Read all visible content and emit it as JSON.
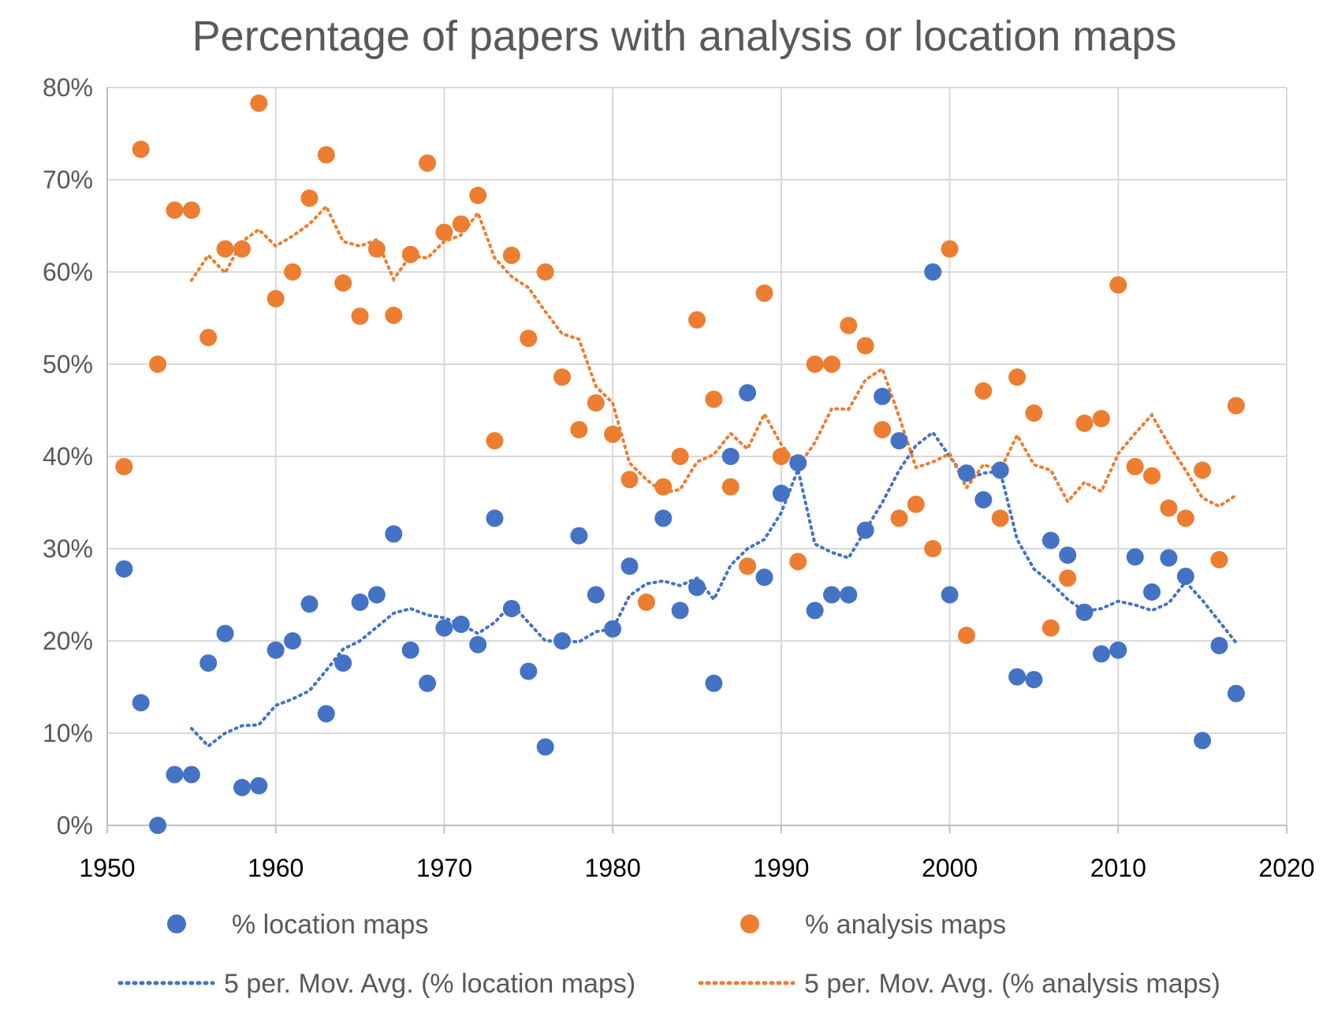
{
  "chart_data": {
    "type": "scatter",
    "title": "Percentage of papers with analysis or location maps",
    "xlabel": "",
    "ylabel": "",
    "xlim": [
      1950,
      2020
    ],
    "ylim": [
      0,
      80
    ],
    "x_ticks": [
      1950,
      1960,
      1970,
      1980,
      1990,
      2000,
      2010,
      2020
    ],
    "y_ticks": [
      0,
      10,
      20,
      30,
      40,
      50,
      60,
      70,
      80
    ],
    "x_tick_labels": [
      "1950",
      "1960",
      "1970",
      "1980",
      "1990",
      "2000",
      "2010",
      "2020"
    ],
    "y_tick_labels": [
      "0%",
      "10%",
      "20%",
      "30%",
      "40%",
      "50%",
      "60%",
      "70%",
      "80%"
    ],
    "grid": true,
    "legend_position": "bottom",
    "series": [
      {
        "name": "% location maps",
        "kind": "points",
        "color": "#4472C4",
        "x": [
          1951,
          1952,
          1953,
          1954,
          1955,
          1956,
          1957,
          1958,
          1959,
          1960,
          1961,
          1962,
          1963,
          1964,
          1965,
          1966,
          1967,
          1968,
          1969,
          1970,
          1971,
          1972,
          1973,
          1974,
          1975,
          1976,
          1977,
          1978,
          1979,
          1980,
          1981,
          1982,
          1983,
          1984,
          1985,
          1986,
          1987,
          1988,
          1989,
          1990,
          1991,
          1992,
          1993,
          1994,
          1995,
          1996,
          1997,
          1998,
          1999,
          2000,
          2001,
          2002,
          2003,
          2004,
          2005,
          2006,
          2007,
          2008,
          2009,
          2010,
          2011,
          2012,
          2013,
          2014,
          2015,
          2016,
          2017
        ],
        "y": [
          27.8,
          13.3,
          0,
          5.5,
          5.5,
          17.6,
          20.8,
          4.1,
          4.3,
          19.0,
          20.0,
          24.0,
          12.1,
          17.6,
          24.2,
          25.0,
          31.6,
          19.0,
          15.4,
          21.4,
          21.8,
          19.6,
          33.3,
          23.5,
          16.7,
          8.5,
          20.0,
          31.4,
          25.0,
          21.3,
          28.1,
          null,
          33.3,
          23.3,
          25.8,
          15.4,
          40.0,
          46.9,
          26.9,
          36.0,
          39.3,
          23.3,
          25.0,
          25.0,
          32.0,
          46.5,
          41.7,
          null,
          60.0,
          25.0,
          38.2,
          35.3,
          38.5,
          16.1,
          15.8,
          30.9,
          29.3,
          23.1,
          18.6,
          19.0,
          29.1,
          25.3,
          29.0,
          27.0,
          9.2,
          19.5,
          14.3
        ]
      },
      {
        "name": "% analysis maps",
        "kind": "points",
        "color": "#ED7D31",
        "x": [
          1951,
          1952,
          1953,
          1954,
          1955,
          1956,
          1957,
          1958,
          1959,
          1960,
          1961,
          1962,
          1963,
          1964,
          1965,
          1966,
          1967,
          1968,
          1969,
          1970,
          1971,
          1972,
          1973,
          1974,
          1975,
          1976,
          1977,
          1978,
          1979,
          1980,
          1981,
          1982,
          1983,
          1984,
          1985,
          1986,
          1987,
          1988,
          1989,
          1990,
          1991,
          1992,
          1993,
          1994,
          1995,
          1996,
          1997,
          1998,
          1999,
          2000,
          2001,
          2002,
          2003,
          2004,
          2005,
          2006,
          2007,
          2008,
          2009,
          2010,
          2011,
          2012,
          2013,
          2014,
          2015,
          2016,
          2017
        ],
        "y": [
          38.9,
          73.3,
          50.0,
          66.7,
          66.7,
          52.9,
          62.5,
          62.5,
          78.3,
          57.1,
          60.0,
          68.0,
          72.7,
          58.8,
          55.2,
          62.5,
          55.3,
          61.9,
          71.8,
          64.3,
          65.2,
          68.3,
          41.7,
          61.8,
          52.8,
          60.0,
          48.6,
          42.9,
          45.8,
          42.4,
          37.5,
          24.2,
          36.7,
          40.0,
          54.8,
          46.2,
          36.7,
          28.1,
          57.7,
          40.0,
          28.6,
          50.0,
          50.0,
          54.2,
          52.0,
          42.9,
          33.3,
          34.8,
          30.0,
          62.5,
          20.6,
          47.1,
          33.3,
          48.6,
          44.7,
          21.4,
          26.8,
          43.6,
          44.1,
          58.6,
          38.9,
          37.9,
          34.4,
          33.3,
          38.5,
          28.8,
          45.5
        ]
      },
      {
        "name": "5 per. Mov. Avg. (% location maps)",
        "kind": "line",
        "color": "#4472C4",
        "x": [
          1955,
          1956,
          1957,
          1958,
          1959,
          1960,
          1961,
          1962,
          1963,
          1964,
          1965,
          1966,
          1967,
          1968,
          1969,
          1970,
          1971,
          1972,
          1973,
          1974,
          1975,
          1976,
          1977,
          1978,
          1979,
          1980,
          1981,
          1982,
          1983,
          1984,
          1985,
          1986,
          1987,
          1988,
          1989,
          1990,
          1991,
          1992,
          1993,
          1994,
          1995,
          1996,
          1997,
          1998,
          1999,
          2000,
          2001,
          2002,
          2003,
          2004,
          2005,
          2006,
          2007,
          2008,
          2009,
          2010,
          2011,
          2012,
          2013,
          2014,
          2015,
          2016,
          2017
        ],
        "y": [
          10.5,
          8.6,
          10.0,
          10.8,
          10.9,
          13.0,
          13.7,
          14.6,
          16.8,
          19.1,
          20.0,
          21.5,
          23.0,
          23.5,
          22.8,
          22.5,
          21.8,
          20.8,
          22.0,
          24.0,
          22.0,
          20.0,
          20.0,
          19.9,
          21.0,
          21.3,
          24.9,
          26.2,
          26.5,
          26.0,
          26.8,
          24.5,
          28.2,
          30.0,
          31.0,
          33.9,
          38.6,
          30.5,
          29.6,
          29.0,
          32.0,
          35.0,
          38.5,
          41.2,
          42.6,
          40.0,
          37.5,
          38.2,
          38.4,
          31.0,
          27.8,
          26.3,
          24.5,
          23.2,
          23.5,
          24.3,
          23.9,
          23.3,
          24.1,
          26.4,
          24.4,
          22.1,
          19.8
        ]
      },
      {
        "name": "5 per. Mov. Avg. (% analysis maps)",
        "kind": "line",
        "color": "#ED7D31",
        "x": [
          1955,
          1956,
          1957,
          1958,
          1959,
          1960,
          1961,
          1962,
          1963,
          1964,
          1965,
          1966,
          1967,
          1968,
          1969,
          1970,
          1971,
          1972,
          1973,
          1974,
          1975,
          1976,
          1977,
          1978,
          1979,
          1980,
          1981,
          1982,
          1983,
          1984,
          1985,
          1986,
          1987,
          1988,
          1989,
          1990,
          1991,
          1992,
          1993,
          1994,
          1995,
          1996,
          1997,
          1998,
          1999,
          2000,
          2001,
          2002,
          2003,
          2004,
          2005,
          2006,
          2007,
          2008,
          2009,
          2010,
          2011,
          2012,
          2013,
          2014,
          2015,
          2016,
          2017
        ],
        "y": [
          59.1,
          61.8,
          59.9,
          63.3,
          64.6,
          62.8,
          63.9,
          65.2,
          67.1,
          63.3,
          62.8,
          63.5,
          59.2,
          61.8,
          61.5,
          63.3,
          64.0,
          66.4,
          61.5,
          59.5,
          58.3,
          55.7,
          53.3,
          52.7,
          47.6,
          45.8,
          39.3,
          37.5,
          36.1,
          36.4,
          39.4,
          40.2,
          42.5,
          40.8,
          44.6,
          41.3,
          38.9,
          41.5,
          45.2,
          45.1,
          48.3,
          49.5,
          44.3,
          38.8,
          39.4,
          40.3,
          36.6,
          39.1,
          38.5,
          42.3,
          39.1,
          38.5,
          35.1,
          37.2,
          36.2,
          40.3,
          42.5,
          44.5,
          41.3,
          38.5,
          35.5,
          34.6,
          35.8
        ]
      }
    ]
  }
}
